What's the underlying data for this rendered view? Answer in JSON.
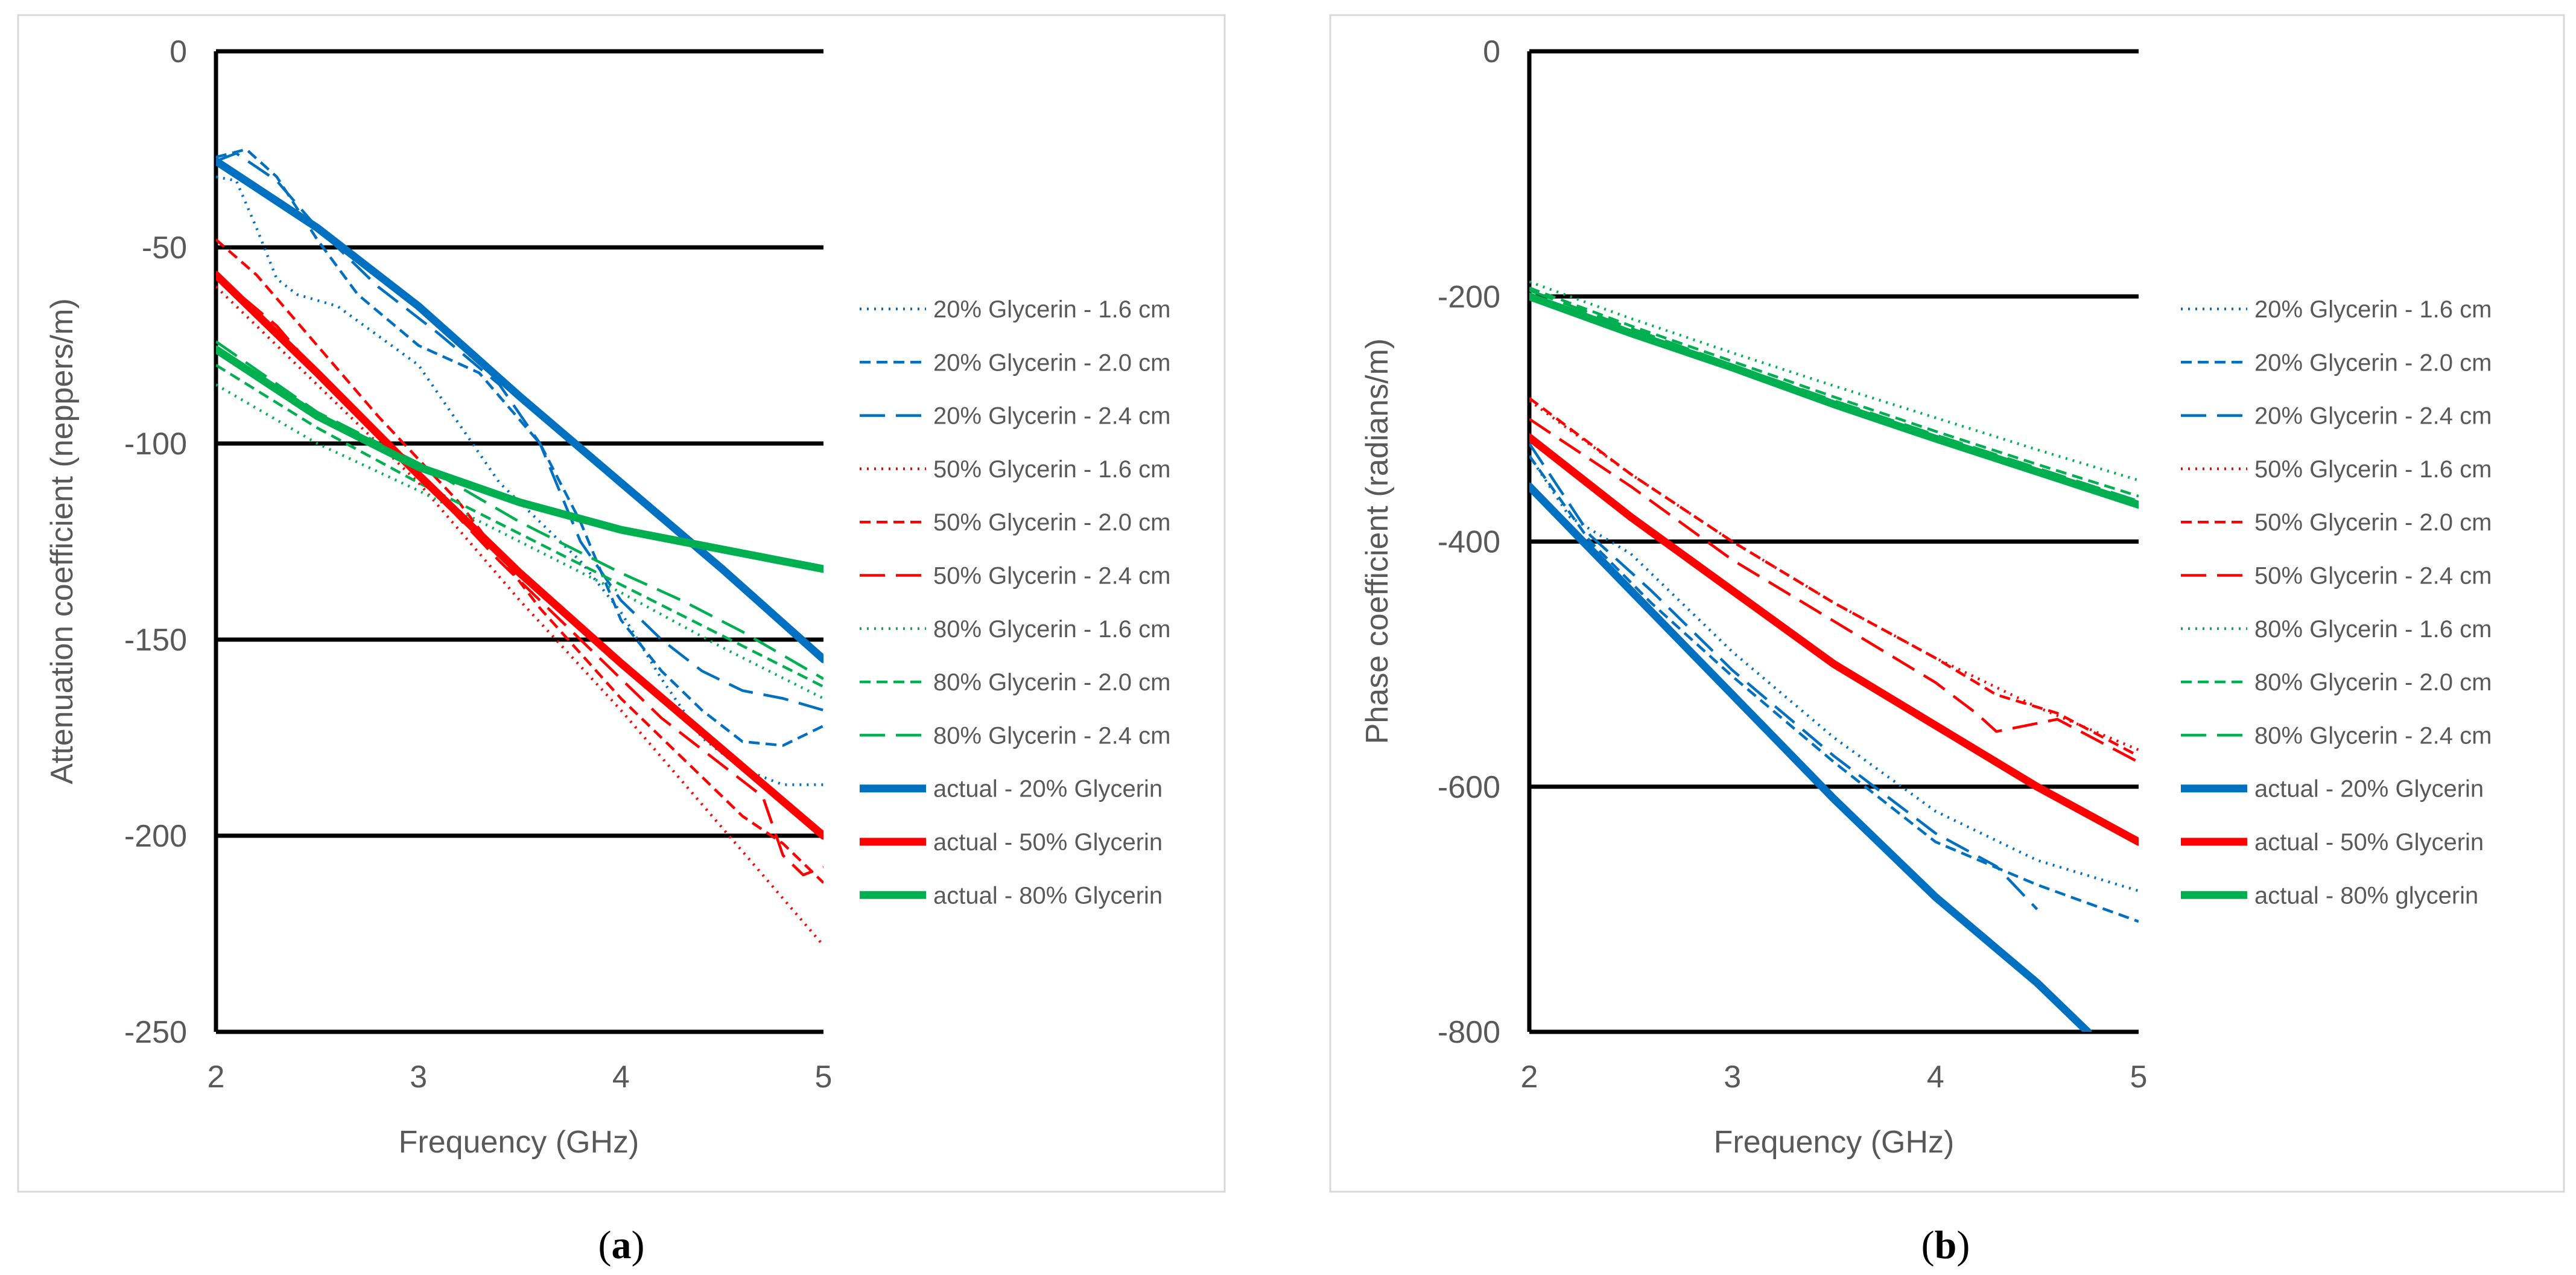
{
  "chart_data": [
    {
      "type": "line",
      "panel_label": "a",
      "xlabel": "Frequency (GHz)",
      "ylabel": "Attenuation coefficient (neppers/m)",
      "xlim": [
        2,
        5
      ],
      "ylim": [
        -250,
        0
      ],
      "xticks": [
        2,
        3,
        4,
        5
      ],
      "yticks": [
        0,
        -50,
        -100,
        -150,
        -200,
        -250
      ],
      "grid": "horizontal major gridlines",
      "legend_position": "right",
      "series": [
        {
          "name": "20% Glycerin - 1.6 cm",
          "color": "#0070C0",
          "style": "dotted",
          "width": "thin",
          "x": [
            2.0,
            2.1,
            2.2,
            2.3,
            2.4,
            2.6,
            3.0,
            3.4,
            3.8,
            4.0,
            4.2,
            4.4,
            4.6,
            4.8,
            5.0
          ],
          "y": [
            -32,
            -33,
            -45,
            -58,
            -62,
            -65,
            -80,
            -110,
            -130,
            -143,
            -160,
            -175,
            -183,
            -187,
            -187
          ]
        },
        {
          "name": "20% Glycerin - 2.0 cm",
          "color": "#0070C0",
          "style": "dashed",
          "width": "thin",
          "x": [
            2.0,
            2.15,
            2.3,
            2.5,
            2.7,
            3.0,
            3.3,
            3.6,
            3.8,
            4.0,
            4.2,
            4.4,
            4.6,
            4.8,
            5.0
          ],
          "y": [
            -27,
            -25,
            -32,
            -48,
            -62,
            -75,
            -82,
            -100,
            -120,
            -145,
            -158,
            -168,
            -176,
            -177,
            -172
          ]
        },
        {
          "name": "20% Glycerin - 2.4 cm",
          "color": "#0070C0",
          "style": "longdash",
          "width": "thin",
          "x": [
            2.0,
            2.1,
            2.3,
            2.5,
            2.8,
            3.1,
            3.4,
            3.6,
            3.8,
            4.0,
            4.2,
            4.4,
            4.6,
            4.8,
            5.0
          ],
          "y": [
            -28,
            -26,
            -33,
            -45,
            -60,
            -72,
            -85,
            -100,
            -125,
            -140,
            -150,
            -158,
            -163,
            -165,
            -168
          ]
        },
        {
          "name": "50% Glycerin - 1.6 cm",
          "color": "#FF0000",
          "style": "dotted",
          "width": "thin",
          "x": [
            2.0,
            2.5,
            3.0,
            3.5,
            4.0,
            4.5,
            5.0
          ],
          "y": [
            -60,
            -85,
            -110,
            -140,
            -168,
            -198,
            -228
          ]
        },
        {
          "name": "50% Glycerin - 2.0 cm",
          "color": "#FF0000",
          "style": "dashed",
          "width": "thin",
          "x": [
            2.0,
            2.2,
            2.5,
            2.8,
            3.2,
            3.6,
            4.0,
            4.3,
            4.6,
            4.8,
            5.0
          ],
          "y": [
            -48,
            -57,
            -75,
            -93,
            -115,
            -142,
            -165,
            -180,
            -195,
            -202,
            -212
          ]
        },
        {
          "name": "50% Glycerin - 2.4 cm",
          "color": "#FF0000",
          "style": "longdash",
          "width": "thin",
          "x": [
            2.0,
            2.3,
            2.6,
            3.0,
            3.4,
            3.8,
            4.2,
            4.5,
            4.7,
            4.8,
            4.9,
            5.0
          ],
          "y": [
            -57,
            -70,
            -88,
            -108,
            -130,
            -150,
            -170,
            -182,
            -190,
            -205,
            -210,
            -208
          ]
        },
        {
          "name": "80% Glycerin - 1.6 cm",
          "color": "#00B050",
          "style": "dotted",
          "width": "thin",
          "x": [
            2.0,
            2.5,
            3.0,
            3.5,
            4.0,
            4.5,
            5.0
          ],
          "y": [
            -85,
            -100,
            -112,
            -125,
            -138,
            -152,
            -165
          ]
        },
        {
          "name": "80% Glycerin - 2.0 cm",
          "color": "#00B050",
          "style": "dashed",
          "width": "thin",
          "x": [
            2.0,
            2.5,
            3.0,
            3.5,
            4.0,
            4.5,
            5.0
          ],
          "y": [
            -80,
            -96,
            -110,
            -123,
            -136,
            -149,
            -162
          ]
        },
        {
          "name": "80% Glycerin - 2.4 cm",
          "color": "#00B050",
          "style": "longdash",
          "width": "thin",
          "x": [
            2.0,
            2.5,
            3.0,
            3.5,
            4.0,
            4.3,
            4.6,
            5.0
          ],
          "y": [
            -74,
            -92,
            -105,
            -120,
            -133,
            -140,
            -148,
            -160
          ]
        },
        {
          "name": "actual - 20% Glycerin",
          "color": "#0070C0",
          "style": "solid",
          "width": "thick",
          "x": [
            2.0,
            2.5,
            3.0,
            3.5,
            4.0,
            4.5,
            5.0
          ],
          "y": [
            -28,
            -45,
            -65,
            -88,
            -110,
            -132,
            -155
          ]
        },
        {
          "name": "actual - 50% Glycerin",
          "color": "#FF0000",
          "style": "solid",
          "width": "thick",
          "x": [
            2.0,
            2.5,
            3.0,
            3.5,
            4.0,
            4.5,
            5.0
          ],
          "y": [
            -57,
            -82,
            -108,
            -133,
            -156,
            -178,
            -200
          ]
        },
        {
          "name": "actual - 80% Glycerin",
          "color": "#00B050",
          "style": "solid",
          "width": "thick",
          "x": [
            2.0,
            2.5,
            3.0,
            3.5,
            4.0,
            4.5,
            5.0
          ],
          "y": [
            -76,
            -93,
            -106,
            -115,
            -122,
            -127,
            -132
          ]
        }
      ]
    },
    {
      "type": "line",
      "panel_label": "b",
      "xlabel": "Frequency (GHz)",
      "ylabel": "Phase coefficient (radians/m)",
      "xlim": [
        2,
        5
      ],
      "ylim": [
        -800,
        0
      ],
      "xticks": [
        2,
        3,
        4,
        5
      ],
      "yticks": [
        0,
        -200,
        -400,
        -600,
        -800
      ],
      "grid": "horizontal major gridlines",
      "legend_position": "right",
      "series": [
        {
          "name": "20% Glycerin - 1.6 cm",
          "color": "#0070C0",
          "style": "dotted",
          "width": "thin",
          "x": [
            2.0,
            2.2,
            2.5,
            3.0,
            3.5,
            4.0,
            4.5,
            5.0
          ],
          "y": [
            -330,
            -380,
            -410,
            -490,
            -560,
            -620,
            -660,
            -685
          ]
        },
        {
          "name": "20% Glycerin - 2.0 cm",
          "color": "#0070C0",
          "style": "dashed",
          "width": "thin",
          "x": [
            2.0,
            2.3,
            2.6,
            3.0,
            3.5,
            4.0,
            4.5,
            5.0
          ],
          "y": [
            -330,
            -400,
            -450,
            -510,
            -580,
            -645,
            -680,
            -710
          ]
        },
        {
          "name": "20% Glycerin - 2.4 cm",
          "color": "#0070C0",
          "style": "longdash",
          "width": "thin",
          "x": [
            2.0,
            2.3,
            2.6,
            3.0,
            3.5,
            4.0,
            4.3,
            4.5
          ],
          "y": [
            -320,
            -395,
            -440,
            -505,
            -575,
            -638,
            -665,
            -700
          ]
        },
        {
          "name": "50% Glycerin - 1.6 cm",
          "color": "#FF0000",
          "style": "dotted",
          "width": "thin",
          "x": [
            2.0,
            2.5,
            3.0,
            3.5,
            4.0,
            4.5,
            5.0
          ],
          "y": [
            -285,
            -345,
            -400,
            -450,
            -495,
            -535,
            -570
          ]
        },
        {
          "name": "50% Glycerin - 2.0 cm",
          "color": "#FF0000",
          "style": "dashed",
          "width": "thin",
          "x": [
            2.0,
            2.5,
            3.0,
            3.5,
            4.0,
            4.3,
            4.6,
            5.0
          ],
          "y": [
            -283,
            -345,
            -400,
            -450,
            -495,
            -525,
            -540,
            -575
          ]
        },
        {
          "name": "50% Glycerin - 2.4 cm",
          "color": "#FF0000",
          "style": "longdash",
          "width": "thin",
          "x": [
            2.0,
            2.5,
            3.0,
            3.5,
            4.0,
            4.2,
            4.3,
            4.6,
            5.0
          ],
          "y": [
            -300,
            -355,
            -415,
            -465,
            -515,
            -540,
            -555,
            -545,
            -580
          ]
        },
        {
          "name": "80% Glycerin - 1.6 cm",
          "color": "#00B050",
          "style": "dotted",
          "width": "thin",
          "x": [
            2.0,
            2.5,
            3.0,
            3.5,
            4.0,
            4.5,
            5.0
          ],
          "y": [
            -188,
            -218,
            -246,
            -273,
            -299,
            -325,
            -350
          ]
        },
        {
          "name": "80% Glycerin - 2.0 cm",
          "color": "#00B050",
          "style": "dashed",
          "width": "thin",
          "x": [
            2.0,
            2.5,
            3.0,
            3.5,
            4.0,
            4.5,
            5.0
          ],
          "y": [
            -193,
            -224,
            -253,
            -282,
            -310,
            -337,
            -363
          ]
        },
        {
          "name": "80% Glycerin - 2.4 cm",
          "color": "#00B050",
          "style": "longdash",
          "width": "thin",
          "x": [
            2.0,
            2.5,
            3.0,
            3.5,
            4.0,
            4.5,
            5.0
          ],
          "y": [
            -195,
            -226,
            -256,
            -285,
            -313,
            -340,
            -367
          ]
        },
        {
          "name": "actual - 20% Glycerin",
          "color": "#0070C0",
          "style": "solid",
          "width": "thick",
          "x": [
            2.0,
            2.5,
            3.0,
            3.5,
            4.0,
            4.5,
            4.75
          ],
          "y": [
            -355,
            -440,
            -525,
            -610,
            -690,
            -760,
            -800
          ]
        },
        {
          "name": "actual - 50% Glycerin",
          "color": "#FF0000",
          "style": "solid",
          "width": "thick",
          "x": [
            2.0,
            2.5,
            3.0,
            3.5,
            4.0,
            4.5,
            5.0
          ],
          "y": [
            -315,
            -380,
            -440,
            -500,
            -550,
            -600,
            -645
          ]
        },
        {
          "name": "actual - 80% glycerin",
          "color": "#00B050",
          "style": "solid",
          "width": "thick",
          "x": [
            2.0,
            2.5,
            3.0,
            3.5,
            4.0,
            4.5,
            5.0
          ],
          "y": [
            -200,
            -230,
            -258,
            -288,
            -316,
            -343,
            -370
          ]
        }
      ]
    }
  ]
}
